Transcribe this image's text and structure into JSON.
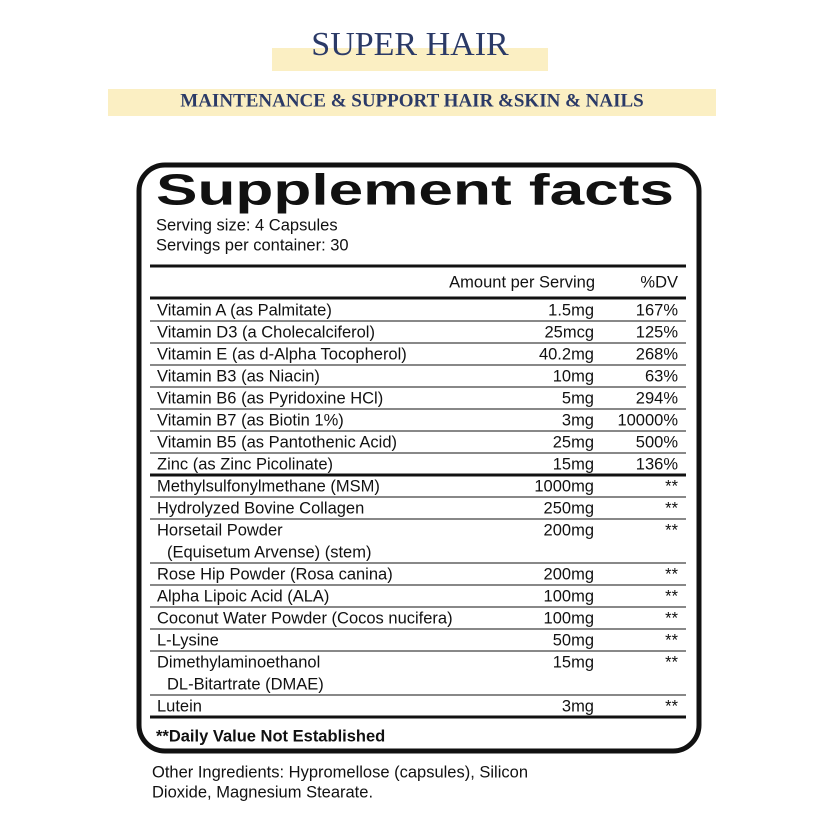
{
  "header": {
    "title": "SUPER HAIR",
    "subtitle": "MAINTENANCE & SUPPORT HAIR &SKIN & NAILS"
  },
  "facts": {
    "heading": "Supplement facts",
    "serving_size": "Serving size: 4 Capsules",
    "servings_per_container": "Servings per container: 30",
    "column_amount": "Amount per Serving",
    "column_dv": "%DV",
    "vitamins": [
      {
        "name": "Vitamin A (as Palmitate)",
        "amount": "1.5mg",
        "dv": "167%"
      },
      {
        "name": "Vitamin D3 (a Cholecalciferol)",
        "amount": "25mcg",
        "dv": "125%"
      },
      {
        "name": "Vitamin E (as d-Alpha Tocopherol)",
        "amount": "40.2mg",
        "dv": "268%"
      },
      {
        "name": "Vitamin B3 (as Niacin)",
        "amount": "10mg",
        "dv": "63%"
      },
      {
        "name": "Vitamin B6 (as Pyridoxine HCl)",
        "amount": "5mg",
        "dv": "294%"
      },
      {
        "name": "Vitamin B7 (as Biotin 1%)",
        "amount": "3mg",
        "dv": "10000%"
      },
      {
        "name": "Vitamin B5 (as Pantothenic Acid)",
        "amount": "25mg",
        "dv": "500%"
      },
      {
        "name": "Zinc (as Zinc Picolinate)",
        "amount": "15mg",
        "dv": "136%"
      }
    ],
    "others": [
      {
        "name": "Methylsulfonylmethane (MSM)",
        "amount": "1000mg",
        "dv": "**"
      },
      {
        "name": "Hydrolyzed Bovine Collagen",
        "amount": "250mg",
        "dv": "**"
      },
      {
        "name": "Horsetail Powder",
        "name_line2": "(Equisetum Arvense) (stem)",
        "amount": "200mg",
        "dv": "**"
      },
      {
        "name": "Rose Hip Powder (Rosa canina)",
        "amount": "200mg",
        "dv": "**"
      },
      {
        "name": "Alpha Lipoic Acid (ALA)",
        "amount": "100mg",
        "dv": "**"
      },
      {
        "name": "Coconut Water Powder (Cocos nucifera)",
        "amount": "100mg",
        "dv": "**"
      },
      {
        "name": "L-Lysine",
        "amount": "50mg",
        "dv": "**"
      },
      {
        "name": "Dimethylaminoethanol",
        "name_line2": "DL-Bitartrate (DMAE)",
        "amount": "15mg",
        "dv": "**"
      },
      {
        "name": "Lutein",
        "amount": "3mg",
        "dv": "**"
      }
    ],
    "footnote": "**Daily Value Not Established"
  },
  "other_ingredients": [
    "Other Ingredients: Hypromellose (capsules), Silicon",
    "Dioxide, Magnesium Stearate."
  ]
}
